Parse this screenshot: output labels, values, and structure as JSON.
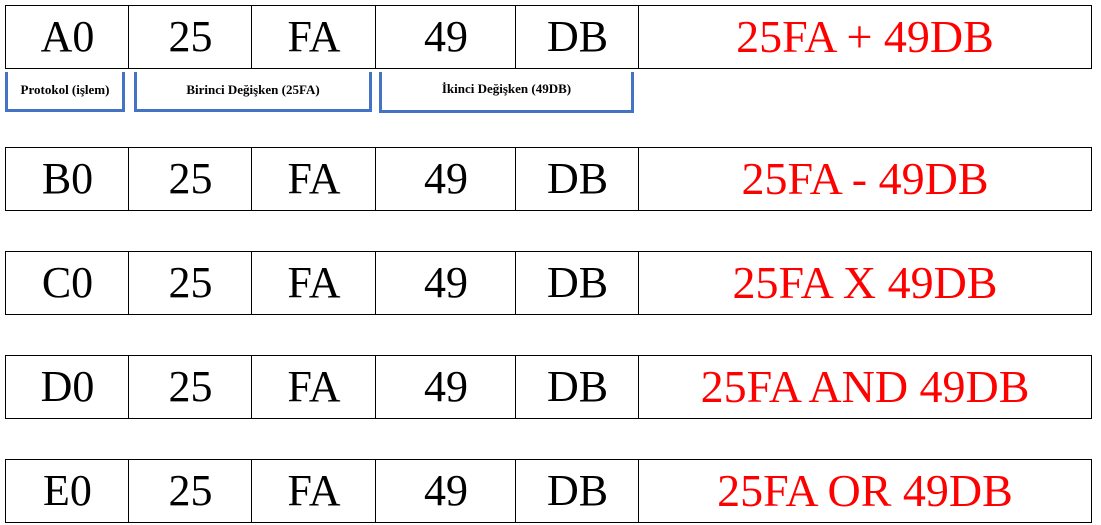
{
  "brackets": {
    "protocol": "Protokol (işlem)",
    "first_var": "Birinci Değişken (25FA)",
    "second_var": "İkinci Değişken (49DB)"
  },
  "rows": [
    {
      "protocol": "A0",
      "b1": "25",
      "b2": "FA",
      "b3": "49",
      "b4": "DB",
      "operation": "25FA + 49DB"
    },
    {
      "protocol": "B0",
      "b1": "25",
      "b2": "FA",
      "b3": "49",
      "b4": "DB",
      "operation": "25FA - 49DB"
    },
    {
      "protocol": "C0",
      "b1": "25",
      "b2": "FA",
      "b3": "49",
      "b4": "DB",
      "operation": "25FA X 49DB"
    },
    {
      "protocol": "D0",
      "b1": "25",
      "b2": "FA",
      "b3": "49",
      "b4": "DB",
      "operation": "25FA AND 49DB"
    },
    {
      "protocol": "E0",
      "b1": "25",
      "b2": "FA",
      "b3": "49",
      "b4": "DB",
      "operation": "25FA OR 49DB"
    }
  ],
  "colors": {
    "operation_text": "#ff0000",
    "bracket": "#4472c4",
    "cell_text": "#000000"
  }
}
